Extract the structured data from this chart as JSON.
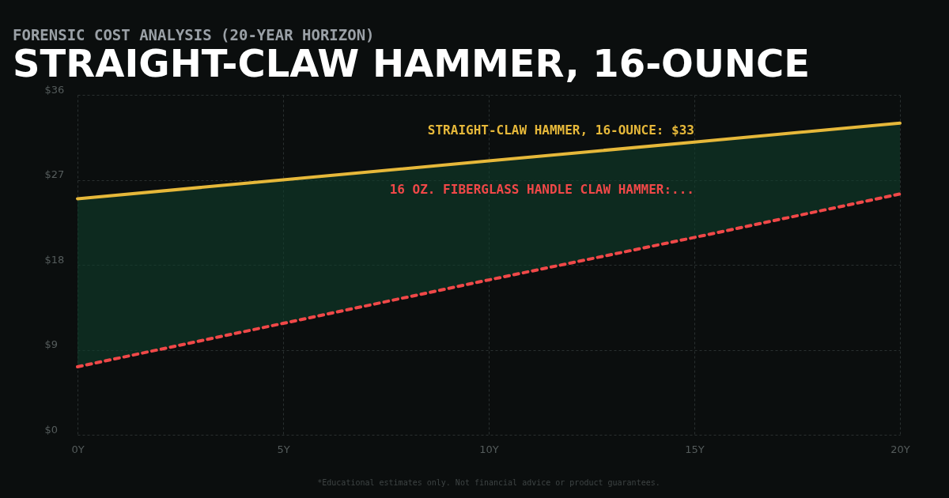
{
  "chart_data": {
    "type": "line",
    "subtitle": "FORENSIC COST ANALYSIS (20-YEAR HORIZON)",
    "title": "STRAIGHT-CLAW HAMMER, 16-OUNCE",
    "x": [
      0,
      5,
      10,
      15,
      20
    ],
    "xlim": [
      0,
      20
    ],
    "xticks": [
      {
        "value": 0,
        "label": "0Y"
      },
      {
        "value": 5,
        "label": "5Y"
      },
      {
        "value": 10,
        "label": "10Y"
      },
      {
        "value": 15,
        "label": "15Y"
      },
      {
        "value": 20,
        "label": "20Y"
      }
    ],
    "ylim": [
      0,
      36
    ],
    "yticks": [
      {
        "value": 0,
        "label": "$0"
      },
      {
        "value": 9,
        "label": "$9"
      },
      {
        "value": 18,
        "label": "$18"
      },
      {
        "value": 27,
        "label": "$27"
      },
      {
        "value": 36,
        "label": "$36"
      }
    ],
    "grid": true,
    "series": [
      {
        "name": "STRAIGHT-CLAW HAMMER, 16-OUNCE: $33",
        "color": "#e6b83a",
        "line_style": "solid",
        "values": [
          25,
          27,
          29,
          31,
          33
        ],
        "lower": [
          7.2,
          11.8,
          16.4,
          20.9,
          25.5
        ],
        "upper": [
          25,
          27,
          29,
          31,
          33
        ]
      },
      {
        "name": "16 OZ. FIBERGLASS HANDLE CLAW HAMMER:...",
        "color": "#f04848",
        "line_style": "dashed",
        "values": [
          7.2,
          11.8,
          16.4,
          20.9,
          25.5
        ]
      }
    ],
    "annotations": [
      "*Educational estimates only. Not financial advice or product guarantees."
    ]
  }
}
